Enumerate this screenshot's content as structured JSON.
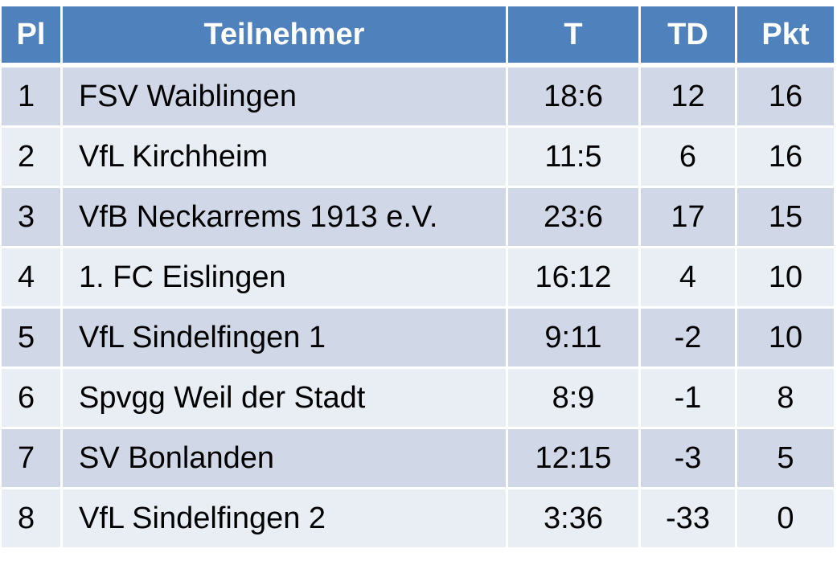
{
  "headers": {
    "pl": "Pl",
    "teilnehmer": "Teilnehmer",
    "t": "T",
    "td": "TD",
    "pkt": "Pkt"
  },
  "rows": [
    {
      "pl": "1",
      "team": "FSV Waiblingen",
      "t": "18:6",
      "td": "12",
      "pkt": "16"
    },
    {
      "pl": "2",
      "team": "VfL Kirchheim",
      "t": "11:5",
      "td": "6",
      "pkt": "16"
    },
    {
      "pl": "3",
      "team": "VfB Neckarrems 1913 e.V.",
      "t": "23:6",
      "td": "17",
      "pkt": "15"
    },
    {
      "pl": "4",
      "team": "1. FC Eislingen",
      "t": "16:12",
      "td": "4",
      "pkt": "10"
    },
    {
      "pl": "5",
      "team": "VfL Sindelfingen 1",
      "t": "9:11",
      "td": "-2",
      "pkt": "10"
    },
    {
      "pl": "6",
      "team": "Spvgg Weil der Stadt",
      "t": "8:9",
      "td": "-1",
      "pkt": "8"
    },
    {
      "pl": "7",
      "team": "SV Bonlanden",
      "t": "12:15",
      "td": "-3",
      "pkt": "5"
    },
    {
      "pl": "8",
      "team": "VfL Sindelfingen 2",
      "t": "3:36",
      "td": "-33",
      "pkt": "0"
    }
  ],
  "colors": {
    "header_bg": "#4f81bd",
    "row_odd": "#d0d8e8",
    "row_even": "#e9edf4"
  }
}
